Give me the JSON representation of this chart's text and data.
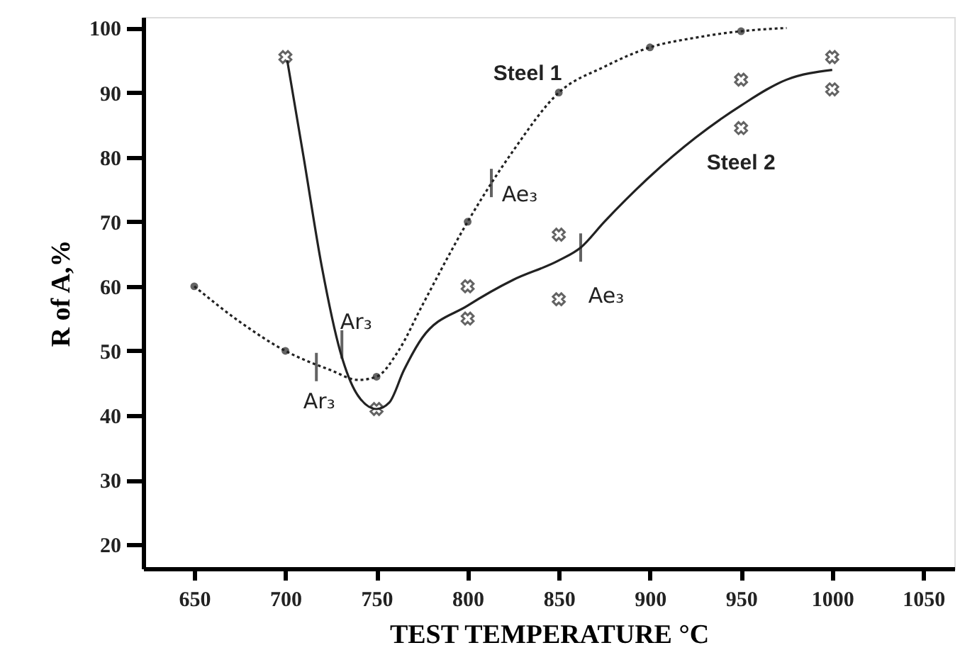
{
  "chart_data": {
    "type": "line",
    "xlabel": "TEST TEMPERATURE °C",
    "ylabel": "R of A,%",
    "xlim": [
      622,
      1067
    ],
    "ylim": [
      16.3,
      101.7
    ],
    "xticks": [
      650,
      700,
      750,
      800,
      850,
      900,
      950,
      1000,
      1050
    ],
    "yticks": [
      20,
      30,
      40,
      50,
      60,
      70,
      80,
      90,
      100
    ],
    "grid": false,
    "series": [
      {
        "name": "Steel 1",
        "line_style": "dotted",
        "marker": "none",
        "color": "#222222",
        "x": [
          650,
          675,
          700,
          725,
          740,
          750,
          762,
          775,
          800,
          825,
          850,
          875,
          900,
          925,
          950,
          975
        ],
        "values": [
          60,
          54.5,
          50,
          47,
          45.5,
          46,
          50,
          57,
          70,
          81,
          90,
          94,
          97,
          98.5,
          99.5,
          100
        ]
      },
      {
        "type": "scatter",
        "marker": "circle",
        "color": "#222222",
        "x": [
          650,
          700,
          750,
          800,
          850,
          900,
          950
        ],
        "values": [
          60,
          50,
          46,
          70,
          90,
          97,
          99.5
        ]
      },
      {
        "name": "Steel 2",
        "line_style": "solid",
        "marker": "none",
        "color": "#222222",
        "x": [
          701,
          710,
          720,
          730,
          740,
          750,
          757,
          765,
          775,
          800,
          825,
          850,
          862,
          875,
          900,
          925,
          950,
          975,
          1000
        ],
        "values": [
          95,
          80,
          63,
          50,
          43,
          41,
          42,
          47,
          52,
          57,
          61,
          64,
          66,
          70,
          77,
          83,
          88,
          92,
          93.5
        ]
      },
      {
        "type": "scatter",
        "marker": "cross",
        "color": "#222222",
        "x": [
          700,
          750,
          800,
          800,
          850,
          850,
          950,
          950,
          1000,
          1000
        ],
        "values": [
          95.5,
          41,
          60,
          55,
          68,
          58,
          92,
          84.5,
          95.5,
          90.5
        ]
      }
    ],
    "annotations": [
      {
        "text": "Ar₃",
        "x": 717,
        "y": 47.5
      },
      {
        "text": "Ar₃",
        "x": 731,
        "y": 51
      },
      {
        "text": "Ae₃",
        "x": 813,
        "y": 76
      },
      {
        "text": "Ae₃",
        "x": 862,
        "y": 66
      }
    ]
  }
}
